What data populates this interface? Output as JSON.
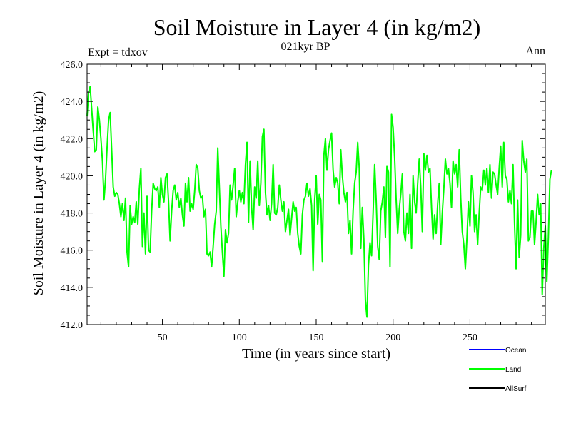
{
  "chart_data": {
    "type": "line",
    "title": "Soil Moisture in Layer 4 (in kg/m2)",
    "subtitle": "021kyr BP",
    "expt_label": "Expt = tdxov",
    "period_label": "Ann",
    "xlabel": "Time (in years since start)",
    "ylabel": "Soil Moisture in Layer 4 (in kg/m2)",
    "xlim": [
      1,
      299
    ],
    "ylim": [
      412,
      426
    ],
    "x_ticks": [
      50,
      100,
      150,
      200,
      250
    ],
    "y_ticks": [
      412,
      414,
      416,
      418,
      420,
      422,
      424,
      426
    ],
    "y_tick_labels": [
      "412.0",
      "414.0",
      "416.0",
      "418.0",
      "420.0",
      "422.0",
      "424.0",
      "426.0"
    ],
    "legend": [
      {
        "name": "Ocean",
        "color": "#0000ff"
      },
      {
        "name": "Land",
        "color": "#00ff00"
      },
      {
        "name": "AllSurf",
        "color": "#000000"
      }
    ],
    "series": [
      {
        "name": "Land",
        "color": "#00ff00",
        "x_start": 1,
        "x_step": 1,
        "values": [
          423.2,
          424.5,
          424.8,
          423.6,
          422.4,
          421.3,
          421.4,
          423.7,
          423.0,
          422.0,
          420.8,
          418.7,
          419.8,
          421.5,
          423.0,
          423.4,
          421.4,
          419.4,
          418.9,
          419.1,
          419.0,
          418.5,
          417.8,
          418.5,
          417.6,
          418.8,
          415.9,
          415.1,
          418.4,
          417.4,
          417.8,
          417.5,
          418.6,
          417.4,
          419.3,
          420.4,
          416.2,
          418.0,
          415.8,
          418.9,
          416.0,
          415.9,
          418.1,
          419.6,
          419.3,
          419.2,
          419.4,
          418.3,
          419.9,
          419.0,
          418.6,
          419.9,
          420.1,
          418.6,
          416.5,
          418.1,
          419.2,
          419.5,
          418.7,
          419.1,
          418.3,
          418.8,
          417.9,
          417.3,
          419.6,
          418.6,
          419.9,
          418.1,
          418.5,
          418.2,
          419.2,
          420.6,
          420.4,
          419.2,
          418.8,
          418.9,
          417.8,
          418.2,
          415.8,
          415.7,
          415.9,
          415.1,
          416.2,
          417.4,
          418.1,
          421.5,
          419.4,
          417.3,
          415.9,
          414.6,
          417.1,
          416.4,
          416.9,
          419.5,
          418.7,
          419.5,
          420.4,
          417.8,
          418.6,
          419.2,
          418.6,
          419.1,
          418.5,
          420.6,
          421.8,
          417.5,
          420.8,
          418.3,
          417.1,
          419.4,
          418.8,
          420.8,
          418.4,
          419.6,
          422.1,
          422.5,
          419.1,
          417.9,
          418.4,
          417.6,
          418.5,
          420.6,
          418.0,
          417.9,
          418.3,
          419.5,
          418.7,
          418.1,
          418.6,
          417.0,
          417.6,
          418.2,
          416.8,
          417.7,
          418.6,
          418.1,
          418.3,
          416.9,
          416.2,
          415.8,
          417.9,
          418.7,
          418.9,
          419.6,
          418.9,
          419.3,
          418.4,
          414.9,
          418.7,
          420.0,
          417.4,
          419.0,
          418.7,
          415.4,
          421.1,
          422.0,
          420.3,
          421.4,
          421.9,
          422.3,
          420.3,
          419.4,
          419.9,
          419.6,
          418.5,
          421.4,
          420.0,
          419.1,
          418.6,
          419.1,
          416.9,
          417.6,
          415.8,
          418.1,
          419.6,
          420.2,
          421.8,
          420.4,
          416.1,
          418.3,
          416.6,
          413.3,
          412.4,
          415.2,
          416.4,
          415.7,
          418.0,
          420.6,
          418.7,
          416.2,
          415.5,
          418.1,
          418.6,
          419.4,
          416.7,
          420.5,
          420.2,
          415.1,
          423.3,
          422.6,
          421.0,
          418.7,
          416.9,
          418.2,
          419.0,
          420.1,
          417.0,
          416.5,
          418.0,
          416.9,
          419.0,
          416.1,
          420.0,
          418.6,
          418.0,
          419.6,
          420.9,
          419.4,
          417.0,
          421.2,
          420.3,
          421.1,
          420.2,
          420.4,
          418.3,
          416.6,
          417.9,
          416.9,
          418.5,
          419.6,
          416.3,
          418.0,
          419.3,
          420.9,
          420.1,
          420.4,
          419.6,
          418.3,
          420.8,
          420.1,
          420.6,
          419.4,
          421.4,
          418.8,
          417.0,
          416.3,
          415.0,
          416.6,
          418.6,
          417.3,
          420.0,
          419.1,
          417.0,
          417.9,
          416.3,
          418.0,
          419.4,
          419.2,
          420.3,
          419.5,
          420.4,
          419.1,
          420.6,
          418.8,
          420.2,
          420.1,
          419.5,
          419.0,
          420.4,
          421.6,
          419.4,
          421.8,
          420.0,
          419.8,
          418.6,
          419.2,
          418.5,
          420.6,
          417.4,
          415.0,
          418.7,
          415.6,
          416.8,
          421.9,
          420.8,
          420.2,
          420.9,
          416.5,
          416.7,
          418.1,
          418.1,
          416.3,
          417.5,
          419.0,
          417.9,
          418.5,
          413.6,
          416.1,
          417.3,
          414.3,
          416.7,
          419.8,
          420.3
        ]
      }
    ]
  }
}
